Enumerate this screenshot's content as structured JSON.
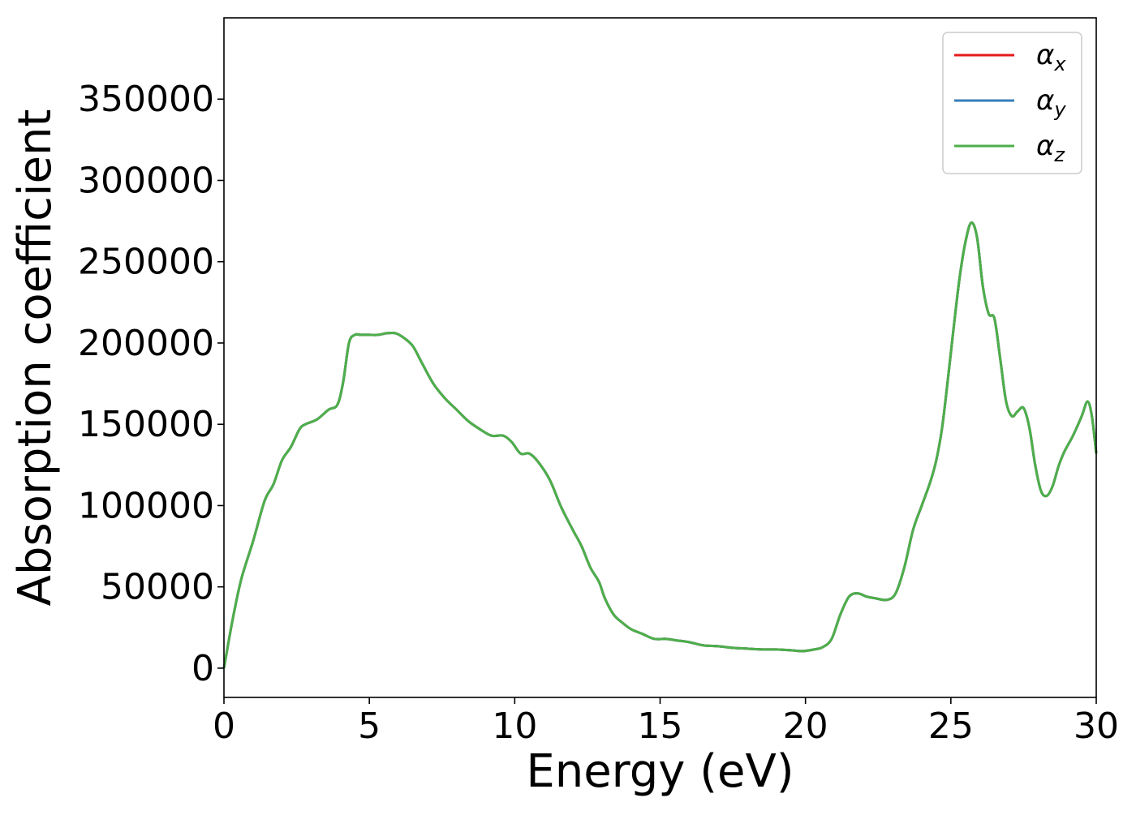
{
  "chart_data": {
    "type": "line",
    "title": "",
    "xlabel": "Energy (eV)",
    "ylabel": "Absorption coefficient",
    "xlim": [
      0,
      30
    ],
    "ylim": [
      -18000,
      400000
    ],
    "xticks": [
      0,
      5,
      10,
      15,
      20,
      25,
      30
    ],
    "yticks": [
      0,
      50000,
      100000,
      150000,
      200000,
      250000,
      300000,
      350000
    ],
    "grid": false,
    "legend_position": "top-right",
    "x": [
      0,
      0.3,
      0.6,
      1.0,
      1.4,
      1.7,
      2.0,
      2.3,
      2.6,
      2.8,
      3.2,
      3.6,
      3.9,
      4.1,
      4.3,
      4.5,
      4.7,
      5.0,
      5.3,
      5.6,
      5.9,
      6.2,
      6.5,
      6.8,
      7.2,
      7.6,
      8.0,
      8.4,
      8.8,
      9.2,
      9.6,
      9.9,
      10.2,
      10.5,
      10.8,
      11.2,
      11.6,
      12.0,
      12.3,
      12.6,
      12.9,
      13.1,
      13.4,
      13.7,
      14.0,
      14.4,
      14.8,
      15.2,
      15.6,
      16.0,
      16.5,
      17.0,
      17.5,
      18.0,
      18.5,
      19.0,
      19.5,
      19.9,
      20.3,
      20.6,
      20.9,
      21.2,
      21.5,
      21.8,
      22.1,
      22.4,
      22.8,
      23.1,
      23.4,
      23.7,
      24.0,
      24.3,
      24.5,
      24.7,
      24.9,
      25.1,
      25.3,
      25.5,
      25.7,
      25.9,
      26.1,
      26.3,
      26.5,
      26.7,
      26.9,
      27.1,
      27.3,
      27.5,
      27.7,
      27.9,
      28.1,
      28.3,
      28.5,
      28.7,
      28.9,
      29.2,
      29.5,
      29.7,
      29.85,
      30.0
    ],
    "series": [
      {
        "name": "α_x",
        "label_base": "α",
        "label_sub": "x",
        "color": "#e41a1c",
        "y": [
          0,
          30000,
          55000,
          78000,
          103000,
          113000,
          128000,
          136000,
          147000,
          150000,
          153000,
          159000,
          162000,
          176000,
          200000,
          205000,
          205000,
          205000,
          205000,
          206000,
          206000,
          203000,
          198000,
          188000,
          175000,
          166000,
          159000,
          152000,
          147000,
          143000,
          143000,
          139000,
          132000,
          132000,
          127000,
          116000,
          99000,
          85000,
          75000,
          62000,
          53000,
          43000,
          33000,
          28000,
          24000,
          21000,
          18000,
          18000,
          17000,
          16000,
          14000,
          13500,
          12500,
          12000,
          11500,
          11500,
          11000,
          10500,
          11500,
          13000,
          18000,
          33000,
          44000,
          46000,
          44000,
          43000,
          42000,
          46000,
          62000,
          85000,
          100000,
          115000,
          128000,
          148000,
          178000,
          210000,
          240000,
          262000,
          274000,
          265000,
          235000,
          218000,
          215000,
          190000,
          164000,
          155000,
          158000,
          160000,
          148000,
          125000,
          109000,
          106000,
          112000,
          124000,
          133000,
          143000,
          155000,
          164000,
          155000,
          132000
        ]
      },
      {
        "name": "α_y",
        "label_base": "α",
        "label_sub": "y",
        "color": "#377eb8",
        "y": [
          0,
          30000,
          55000,
          78000,
          103000,
          113000,
          128000,
          136000,
          147000,
          150000,
          153000,
          159000,
          162000,
          176000,
          200000,
          205000,
          205000,
          205000,
          205000,
          206000,
          206000,
          203000,
          198000,
          188000,
          175000,
          166000,
          159000,
          152000,
          147000,
          143000,
          143000,
          139000,
          132000,
          132000,
          127000,
          116000,
          99000,
          85000,
          75000,
          62000,
          53000,
          43000,
          33000,
          28000,
          24000,
          21000,
          18000,
          18000,
          17000,
          16000,
          14000,
          13500,
          12500,
          12000,
          11500,
          11500,
          11000,
          10500,
          11500,
          13000,
          18000,
          33000,
          44000,
          46000,
          44000,
          43000,
          42000,
          46000,
          62000,
          85000,
          100000,
          115000,
          128000,
          148000,
          178000,
          210000,
          240000,
          262000,
          274000,
          265000,
          235000,
          218000,
          215000,
          190000,
          164000,
          155000,
          158000,
          160000,
          148000,
          125000,
          109000,
          106000,
          112000,
          124000,
          133000,
          143000,
          155000,
          164000,
          155000,
          132000
        ]
      },
      {
        "name": "α_z",
        "label_base": "α",
        "label_sub": "z",
        "color": "#4daf4a",
        "y": [
          0,
          30000,
          55000,
          78000,
          103000,
          113000,
          128000,
          136000,
          147000,
          150000,
          153000,
          159000,
          162000,
          176000,
          200000,
          205000,
          205000,
          205000,
          205000,
          206000,
          206000,
          203000,
          198000,
          188000,
          175000,
          166000,
          159000,
          152000,
          147000,
          143000,
          143000,
          139000,
          132000,
          132000,
          127000,
          116000,
          99000,
          85000,
          75000,
          62000,
          53000,
          43000,
          33000,
          28000,
          24000,
          21000,
          18000,
          18000,
          17000,
          16000,
          14000,
          13500,
          12500,
          12000,
          11500,
          11500,
          11000,
          10500,
          11500,
          13000,
          18000,
          33000,
          44000,
          46000,
          44000,
          43000,
          42000,
          46000,
          62000,
          85000,
          100000,
          115000,
          128000,
          148000,
          178000,
          210000,
          240000,
          262000,
          274000,
          265000,
          235000,
          218000,
          215000,
          190000,
          164000,
          155000,
          158000,
          160000,
          148000,
          125000,
          109000,
          106000,
          112000,
          124000,
          133000,
          143000,
          155000,
          164000,
          155000,
          132000
        ]
      }
    ]
  }
}
